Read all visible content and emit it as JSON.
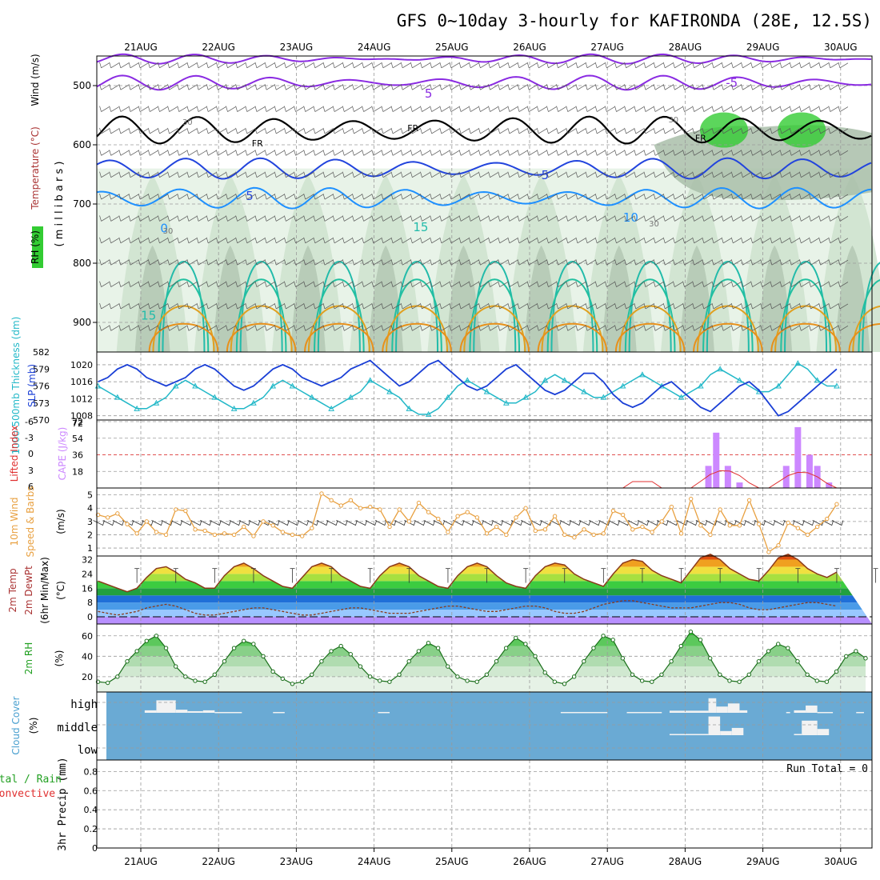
{
  "title": "GFS 0~10day 3-hourly for KAFIRONDA (28E, 12.5S)",
  "dates": [
    "21AUG",
    "22AUG",
    "23AUG",
    "24AUG",
    "25AUG",
    "26AUG",
    "27AUG",
    "28AUG",
    "29AUG",
    "30AUG"
  ],
  "colors": {
    "frame": "#000000",
    "grid": "#9a9a9a",
    "cloud_bg": "#6aaad4",
    "rh_green": "#33cc33",
    "cape": "#cc88ff",
    "slp": "#1a3fd6",
    "thickness": "#22b8c8",
    "wind": "#e8a040",
    "temp_curve": "#8b3a1a",
    "dewpt": "#8b3a1a"
  },
  "chart_data": [
    {
      "type": "contour",
      "panel": "upper-air",
      "ylabel_parts": [
        "RH (%)",
        "Temperature (°C)",
        "Wind (m/s)"
      ],
      "ylabel2": "( m i l l i b a r s )",
      "y_ticks": [
        500,
        600,
        700,
        800,
        900
      ],
      "ylim": [
        450,
        950
      ],
      "contour_labels": [
        "-5",
        "5",
        "FR",
        "FR",
        "FR",
        "5",
        "5",
        "10",
        "0",
        "15",
        "15",
        "30",
        "30",
        "30",
        "30"
      ]
    },
    {
      "type": "line",
      "panel": "slp-thickness",
      "ylabel_left": "1000-500mb Thickness (dm)",
      "ylabel_right": "SLP (mb)",
      "y_ticks_left": [
        570,
        573,
        576,
        579,
        582
      ],
      "y_ticks_right": [
        1008,
        1012,
        1016,
        1020
      ],
      "series": [
        {
          "name": "SLP (mb)",
          "values": [
            1016,
            1017,
            1019,
            1020,
            1019,
            1017,
            1016,
            1015,
            1016,
            1017,
            1019,
            1020,
            1019,
            1017,
            1015,
            1014,
            1015,
            1017,
            1019,
            1020,
            1019,
            1017,
            1016,
            1015,
            1016,
            1017,
            1019,
            1020,
            1021,
            1019,
            1017,
            1015,
            1016,
            1018,
            1020,
            1021,
            1019,
            1017,
            1015,
            1014,
            1015,
            1017,
            1019,
            1020,
            1018,
            1016,
            1014,
            1013,
            1014,
            1016,
            1018,
            1018,
            1016,
            1013,
            1011,
            1010,
            1011,
            1013,
            1015,
            1016,
            1014,
            1012,
            1010,
            1009,
            1011,
            1013,
            1015,
            1016,
            1014,
            1011,
            1008,
            1009,
            1011,
            1013,
            1015,
            1017,
            1019
          ]
        },
        {
          "name": "1000-500mb Thickness (dm)",
          "values": [
            576,
            575,
            574,
            573,
            572,
            572,
            573,
            574,
            576,
            577,
            576,
            575,
            574,
            573,
            572,
            572,
            573,
            574,
            576,
            577,
            576,
            575,
            574,
            573,
            572,
            573,
            574,
            575,
            577,
            576,
            575,
            574,
            572,
            571,
            571,
            572,
            574,
            576,
            577,
            576,
            575,
            574,
            573,
            573,
            574,
            575,
            577,
            578,
            577,
            576,
            575,
            574,
            574,
            575,
            576,
            577,
            578,
            577,
            576,
            575,
            574,
            575,
            576,
            578,
            579,
            578,
            577,
            576,
            575,
            575,
            576,
            578,
            580,
            579,
            577,
            576,
            576
          ]
        }
      ]
    },
    {
      "type": "bar",
      "panel": "cape-li",
      "ylabel_left": "Lifted Index",
      "ylabel_right": "CAPE (J/kg)",
      "y_ticks_left": [
        "-6",
        "-3",
        "0",
        "3",
        "6"
      ],
      "y_ticks_right": [
        18,
        36,
        54,
        72
      ],
      "cape_bars": [
        {
          "day": 7.3,
          "value": 24
        },
        {
          "day": 7.4,
          "value": 60
        },
        {
          "day": 7.55,
          "value": 24
        },
        {
          "day": 7.7,
          "value": 6
        },
        {
          "day": 8.3,
          "value": 24
        },
        {
          "day": 8.45,
          "value": 66
        },
        {
          "day": 8.6,
          "value": 36
        },
        {
          "day": 8.7,
          "value": 24
        },
        {
          "day": 8.85,
          "value": 6
        }
      ]
    },
    {
      "type": "line",
      "panel": "wind",
      "ylabel": "10m Wind Speed & Barbs (m/s)",
      "y_ticks": [
        1,
        2,
        3,
        4,
        5
      ],
      "values": [
        3.5,
        3.3,
        3.6,
        2.8,
        2.1,
        3.0,
        2.2,
        2.0,
        3.9,
        3.8,
        2.4,
        2.3,
        2.0,
        2.1,
        2.0,
        2.6,
        1.9,
        3.0,
        2.7,
        2.2,
        2.0,
        1.9,
        2.5,
        5.1,
        4.6,
        4.2,
        4.6,
        4.0,
        4.1,
        3.9,
        2.6,
        3.9,
        3.0,
        4.4,
        3.7,
        3.2,
        2.2,
        3.4,
        3.7,
        3.3,
        2.1,
        2.6,
        2.0,
        3.3,
        4.0,
        2.3,
        2.4,
        3.4,
        2.0,
        1.8,
        2.4,
        2.0,
        2.1,
        3.8,
        3.5,
        2.4,
        2.6,
        2.2,
        3.0,
        4.1,
        2.1,
        4.7,
        2.7,
        2.0,
        3.9,
        2.7,
        2.7,
        4.6,
        2.8,
        0.7,
        1.2,
        2.9,
        2.5,
        2.0,
        2.6,
        3.2,
        4.3
      ]
    },
    {
      "type": "area",
      "panel": "temperature",
      "ylabel": "2m Temp 2m DewPt (6hr Min/Max) (°C)",
      "y_ticks": [
        0,
        8,
        16,
        24,
        32
      ],
      "temp": [
        20,
        18,
        16,
        14,
        16,
        22,
        27,
        28,
        25,
        21,
        19,
        16,
        16,
        23,
        28,
        30,
        27,
        23,
        20,
        17,
        16,
        22,
        28,
        30,
        28,
        23,
        20,
        17,
        16,
        23,
        28,
        30,
        28,
        23,
        20,
        17,
        16,
        23,
        28,
        30,
        28,
        23,
        19,
        17,
        16,
        23,
        28,
        30,
        29,
        24,
        21,
        19,
        17,
        24,
        30,
        32,
        31,
        26,
        23,
        21,
        19,
        26,
        33,
        35,
        32,
        27,
        24,
        21,
        20,
        26,
        33,
        35,
        32,
        27,
        24,
        22,
        25
      ],
      "dewpt": [
        3,
        2,
        1,
        2,
        3,
        5,
        6,
        7,
        6,
        4,
        2,
        1,
        1,
        2,
        3,
        4,
        5,
        5,
        4,
        3,
        2,
        1,
        1,
        2,
        3,
        4,
        5,
        5,
        4,
        3,
        2,
        2,
        2,
        3,
        4,
        5,
        6,
        6,
        5,
        4,
        3,
        3,
        4,
        5,
        6,
        6,
        5,
        3,
        2,
        2,
        3,
        5,
        7,
        8,
        9,
        9,
        8,
        7,
        6,
        5,
        5,
        5,
        6,
        7,
        8,
        8,
        7,
        5,
        4,
        4,
        5,
        6,
        7,
        8,
        8,
        7,
        6
      ]
    },
    {
      "type": "area",
      "panel": "rh",
      "ylabel": "2m RH (%)",
      "y_ticks": [
        20,
        40,
        60
      ],
      "values": [
        15,
        14,
        20,
        35,
        45,
        55,
        60,
        48,
        30,
        20,
        16,
        15,
        22,
        35,
        48,
        55,
        52,
        40,
        25,
        18,
        13,
        15,
        22,
        35,
        45,
        50,
        42,
        30,
        20,
        16,
        15,
        22,
        35,
        45,
        53,
        48,
        30,
        20,
        16,
        15,
        22,
        35,
        48,
        58,
        52,
        40,
        24,
        15,
        13,
        20,
        35,
        48,
        60,
        56,
        38,
        22,
        16,
        15,
        22,
        35,
        50,
        64,
        56,
        38,
        22,
        16,
        15,
        22,
        35,
        45,
        52,
        48,
        35,
        22,
        16,
        15,
        25,
        40,
        45,
        38
      ]
    },
    {
      "type": "heatmap",
      "panel": "cloud-cover",
      "ylabel": "Cloud Cover (%)",
      "rows": [
        "high",
        "middle",
        "low"
      ]
    },
    {
      "type": "bar",
      "panel": "precip",
      "ylabel": "3hr Precip (mm)",
      "legend": [
        "Total / Rain",
        "Convective"
      ],
      "y_ticks": [
        0,
        0.2,
        0.4,
        0.6,
        0.8
      ],
      "run_total": "Run Total = 0",
      "values": []
    }
  ]
}
